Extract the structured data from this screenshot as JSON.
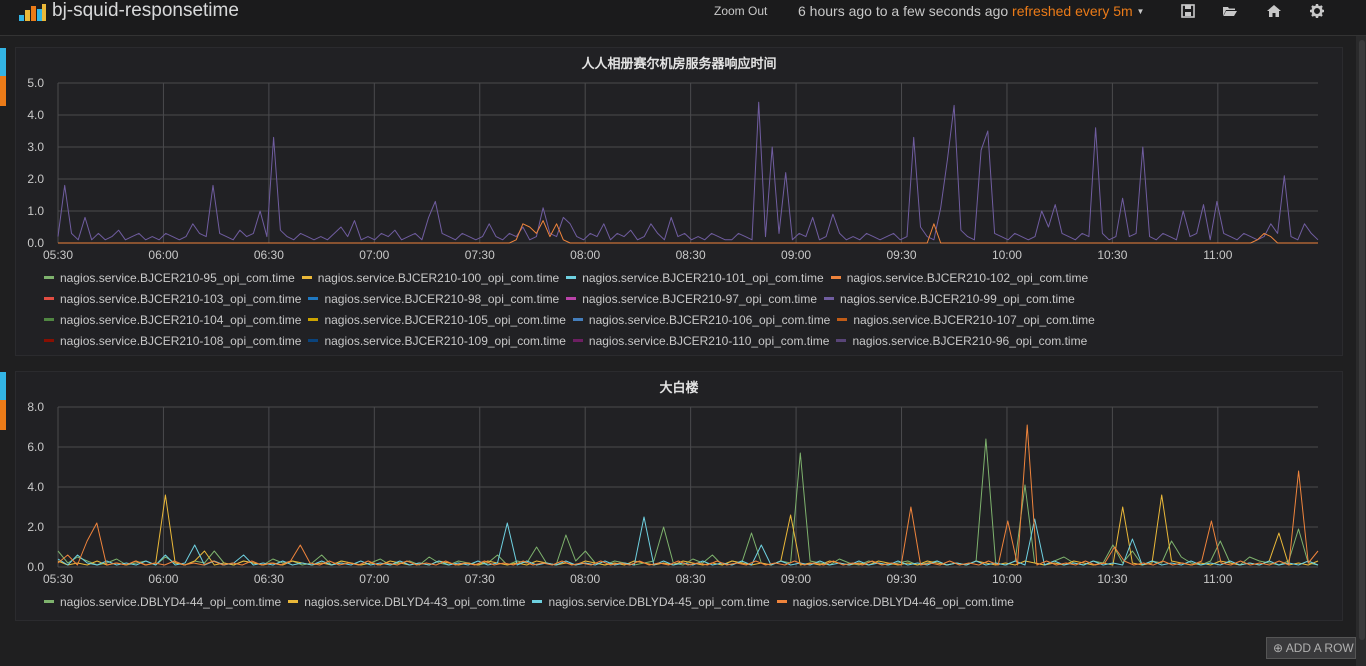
{
  "dashboard": {
    "title": "bj-squid-responsetime",
    "zoom_out_label": "Zoom Out",
    "time_range": "6 hours ago to a few seconds ago",
    "refresh_label": "refreshed every 5m",
    "icons": [
      "logo-icon",
      "save-icon",
      "folder-open-icon",
      "home-icon",
      "gear-icon"
    ]
  },
  "colors": {
    "row_bar_top": "#33b5e5",
    "row_bar_bottom": "#eb7b18",
    "grid": "#4a4a4d",
    "axis_text": "#c8c8c8"
  },
  "add_row_label": "ADD A ROW",
  "panels": [
    {
      "title": "人人相册赛尔机房服务器响应时间",
      "legend": [
        {
          "label": "nagios.service.BJCER210-95_opi_com.time",
          "color": "#7eb26d"
        },
        {
          "label": "nagios.service.BJCER210-100_opi_com.time",
          "color": "#eab839"
        },
        {
          "label": "nagios.service.BJCER210-101_opi_com.time",
          "color": "#6ed0e0"
        },
        {
          "label": "nagios.service.BJCER210-102_opi_com.time",
          "color": "#ef843c"
        },
        {
          "label": "nagios.service.BJCER210-103_opi_com.time",
          "color": "#e24d42"
        },
        {
          "label": "nagios.service.BJCER210-98_opi_com.time",
          "color": "#1f78c1"
        },
        {
          "label": "nagios.service.BJCER210-97_opi_com.time",
          "color": "#ba43a9"
        },
        {
          "label": "nagios.service.BJCER210-99_opi_com.time",
          "color": "#705da0"
        },
        {
          "label": "nagios.service.BJCER210-104_opi_com.time",
          "color": "#508642"
        },
        {
          "label": "nagios.service.BJCER210-105_opi_com.time",
          "color": "#cca300"
        },
        {
          "label": "nagios.service.BJCER210-106_opi_com.time",
          "color": "#447ebc"
        },
        {
          "label": "nagios.service.BJCER210-107_opi_com.time",
          "color": "#c15c17"
        },
        {
          "label": "nagios.service.BJCER210-108_opi_com.time",
          "color": "#890f02"
        },
        {
          "label": "nagios.service.BJCER210-109_opi_com.time",
          "color": "#0a437c"
        },
        {
          "label": "nagios.service.BJCER210-110_opi_com.time",
          "color": "#6d1f62"
        },
        {
          "label": "nagios.service.BJCER210-96_opi_com.time",
          "color": "#584477"
        }
      ]
    },
    {
      "title": "大白楼",
      "legend": [
        {
          "label": "nagios.service.DBLYD4-44_opi_com.time",
          "color": "#7eb26d"
        },
        {
          "label": "nagios.service.DBLYD4-43_opi_com.time",
          "color": "#eab839"
        },
        {
          "label": "nagios.service.DBLYD4-45_opi_com.time",
          "color": "#6ed0e0"
        },
        {
          "label": "nagios.service.DBLYD4-46_opi_com.time",
          "color": "#ef843c"
        }
      ]
    }
  ],
  "chart_data": [
    {
      "type": "line",
      "title": "人人相册赛尔机房服务器响应时间",
      "x_tick_labels": [
        "05:30",
        "06:00",
        "06:30",
        "07:00",
        "07:30",
        "08:00",
        "08:30",
        "09:00",
        "09:30",
        "10:00",
        "10:30",
        "11:00"
      ],
      "y_tick_labels": [
        "0.0",
        "1.0",
        "2.0",
        "3.0",
        "4.0",
        "5.0"
      ],
      "ylim": [
        0,
        5
      ],
      "grid": true,
      "legend_position": "bottom",
      "series": [
        {
          "name": "nagios.service.BJCER210-99_opi_com.time",
          "color": "#705da0",
          "values": [
            0.2,
            1.8,
            0.3,
            0.1,
            0.8,
            0.1,
            0.3,
            0.1,
            0.2,
            0.4,
            0.1,
            0.2,
            0.3,
            0.1,
            0.2,
            0.1,
            0.3,
            0.2,
            0.1,
            0.2,
            0.6,
            0.3,
            0.2,
            1.8,
            0.3,
            0.2,
            0.1,
            0.4,
            0.2,
            0.3,
            1.0,
            0.2,
            3.3,
            0.4,
            0.2,
            0.1,
            0.3,
            0.2,
            0.1,
            0.2,
            0.1,
            0.3,
            0.5,
            0.2,
            0.7,
            0.1,
            0.2,
            0.1,
            0.3,
            0.2,
            0.4,
            0.1,
            0.2,
            0.3,
            0.1,
            0.8,
            1.3,
            0.3,
            0.2,
            0.1,
            0.3,
            0.2,
            0.1,
            0.2,
            0.6,
            0.2,
            0.1,
            0.3,
            0.2,
            0.5,
            0.1,
            0.2,
            1.1,
            0.3,
            0.2,
            0.8,
            0.6,
            0.2,
            0.1,
            0.3,
            0.2,
            0.6,
            0.1,
            0.3,
            0.2,
            0.4,
            0.1,
            0.2,
            0.6,
            0.3,
            0.1,
            0.8,
            0.2,
            0.3,
            0.1,
            0.2,
            0.1,
            0.3,
            0.2,
            0.1,
            0.1,
            0.3,
            0.2,
            0.1,
            4.4,
            0.2,
            3.0,
            0.3,
            2.2,
            0.1,
            0.3,
            0.2,
            0.8,
            0.1,
            0.2,
            0.9,
            0.3,
            0.1,
            0.2,
            0.1,
            0.3,
            0.2,
            0.1,
            0.2,
            0.3,
            0.1,
            0.2,
            3.3,
            0.5,
            0.2,
            0.1,
            1.1,
            2.6,
            4.3,
            0.4,
            0.2,
            0.1,
            2.9,
            3.5,
            0.3,
            0.2,
            0.1,
            0.3,
            0.2,
            0.1,
            0.2,
            1.0,
            0.5,
            1.2,
            0.3,
            0.2,
            0.1,
            0.3,
            0.2,
            3.6,
            0.3,
            0.1,
            0.2,
            1.4,
            0.2,
            0.3,
            3.0,
            0.2,
            0.1,
            0.3,
            0.2,
            0.1,
            1.0,
            0.2,
            0.3,
            1.2,
            0.1,
            1.3,
            0.3,
            0.2,
            0.1,
            0.3,
            0.2,
            0.1,
            0.2,
            0.6,
            0.3,
            2.1,
            0.2,
            0.1,
            0.6,
            0.3,
            0.1
          ]
        },
        {
          "name": "nagios.service.BJCER210-102_opi_com.time",
          "color": "#ef843c",
          "values": [
            0,
            0,
            0,
            0,
            0,
            0,
            0,
            0,
            0,
            0,
            0,
            0,
            0,
            0,
            0,
            0,
            0,
            0,
            0,
            0,
            0,
            0,
            0,
            0,
            0,
            0,
            0,
            0,
            0,
            0,
            0,
            0,
            0,
            0,
            0,
            0,
            0,
            0,
            0,
            0,
            0,
            0,
            0,
            0,
            0,
            0,
            0,
            0,
            0,
            0,
            0,
            0,
            0,
            0,
            0,
            0,
            0,
            0,
            0,
            0,
            0,
            0,
            0,
            0,
            0,
            0,
            0,
            0,
            0.1,
            0.6,
            0.5,
            0.3,
            0.7,
            0.2,
            0.6,
            0.1,
            0,
            0,
            0,
            0,
            0,
            0,
            0,
            0,
            0,
            0,
            0,
            0,
            0,
            0,
            0,
            0,
            0,
            0,
            0,
            0,
            0,
            0,
            0,
            0,
            0,
            0,
            0,
            0,
            0,
            0,
            0,
            0,
            0,
            0,
            0,
            0,
            0,
            0,
            0,
            0,
            0,
            0,
            0,
            0,
            0,
            0,
            0,
            0,
            0,
            0,
            0,
            0,
            0,
            0,
            0.6,
            0,
            0,
            0,
            0,
            0,
            0,
            0,
            0,
            0,
            0,
            0,
            0,
            0,
            0,
            0,
            0,
            0,
            0,
            0,
            0,
            0,
            0,
            0,
            0,
            0,
            0,
            0,
            0,
            0,
            0,
            0,
            0,
            0,
            0,
            0,
            0,
            0,
            0,
            0,
            0,
            0,
            0,
            0,
            0,
            0,
            0,
            0,
            0.1,
            0.3,
            0.2,
            0,
            0,
            0,
            0,
            0,
            0,
            0
          ]
        }
      ]
    },
    {
      "type": "line",
      "title": "大白楼",
      "x_tick_labels": [
        "05:30",
        "06:00",
        "06:30",
        "07:00",
        "07:30",
        "08:00",
        "08:30",
        "09:00",
        "09:30",
        "10:00",
        "10:30",
        "11:00"
      ],
      "y_tick_labels": [
        "0.0",
        "2.0",
        "4.0",
        "6.0",
        "8.0"
      ],
      "ylim": [
        0,
        8
      ],
      "grid": true,
      "legend_position": "bottom",
      "series": [
        {
          "name": "nagios.service.DBLYD4-44_opi_com.time",
          "color": "#7eb26d",
          "values": [
            0.8,
            0.2,
            0.5,
            0.3,
            0.1,
            0.2,
            0.4,
            0.1,
            0.2,
            0.3,
            0.1,
            0.5,
            0.2,
            0.1,
            0.3,
            0.2,
            0.8,
            0.2,
            0.1,
            0.3,
            0.2,
            0.1,
            0.4,
            0.2,
            0.3,
            0.1,
            0.2,
            0.6,
            0.1,
            0.3,
            0.2,
            0.1,
            0.2,
            0.4,
            0.1,
            0.2,
            0.3,
            0.1,
            0.5,
            0.2,
            0.1,
            0.3,
            0.2,
            0.1,
            0.2,
            0.6,
            0.1,
            0.3,
            0.2,
            1.0,
            0.2,
            0.1,
            1.6,
            0.3,
            0.8,
            0.2,
            0.1,
            0.3,
            0.2,
            0.1,
            0.2,
            0.3,
            2.0,
            0.2,
            0.1,
            0.4,
            0.2,
            0.6,
            0.1,
            0.3,
            0.2,
            1.7,
            0.2,
            0.1,
            0.3,
            0.2,
            5.7,
            0.3,
            0.2,
            0.1,
            0.4,
            0.2,
            0.1,
            0.3,
            0.2,
            0.1,
            0.2,
            0.3,
            0.1,
            0.2,
            0.3,
            0.1,
            0.2,
            0.1,
            0.3,
            6.4,
            0.2,
            0.1,
            0.3,
            4.1,
            0.2,
            0.1,
            0.3,
            0.5,
            0.2,
            0.1,
            0.3,
            0.2,
            1.1,
            0.2,
            0.8,
            0.1,
            0.3,
            0.2,
            1.3,
            0.5,
            0.2,
            0.1,
            0.3,
            1.3,
            0.2,
            0.1,
            0.5,
            0.3,
            0.2,
            0.1,
            0.3,
            1.9,
            0.2,
            0.1
          ]
        },
        {
          "name": "nagios.service.DBLYD4-43_opi_com.time",
          "color": "#eab839",
          "values": [
            0.3,
            0.1,
            0.2,
            0.1,
            0.3,
            0.1,
            0.2,
            0.1,
            0.3,
            0.1,
            0.2,
            3.6,
            0.2,
            0.1,
            0.3,
            0.8,
            0.1,
            0.2,
            0.1,
            0.3,
            0.2,
            0.1,
            0.2,
            0.1,
            0.3,
            0.2,
            0.1,
            0.2,
            0.1,
            0.3,
            0.2,
            0.1,
            0.2,
            0.1,
            0.3,
            0.2,
            0.1,
            0.2,
            0.1,
            0.3,
            0.2,
            0.1,
            0.2,
            0.1,
            0.3,
            0.2,
            0.1,
            0.2,
            0.1,
            0.3,
            0.2,
            0.1,
            0.2,
            0.1,
            0.3,
            0.2,
            0.1,
            0.2,
            0.1,
            0.3,
            0.2,
            0.1,
            0.2,
            0.1,
            0.3,
            0.2,
            0.1,
            0.2,
            0.1,
            0.3,
            0.2,
            0.1,
            0.2,
            0.1,
            0.3,
            2.6,
            0.1,
            0.2,
            0.1,
            0.3,
            0.2,
            0.1,
            0.2,
            0.1,
            0.3,
            0.2,
            0.1,
            0.2,
            0.1,
            0.3,
            0.2,
            0.1,
            0.2,
            0.1,
            0.3,
            0.2,
            0.1,
            0.2,
            0.1,
            0.3,
            0.2,
            0.1,
            0.2,
            0.1,
            0.3,
            0.2,
            0.1,
            0.2,
            0.1,
            3.0,
            0.2,
            0.1,
            0.2,
            3.6,
            0.3,
            0.2,
            0.1,
            0.2,
            0.1,
            0.3,
            0.2,
            0.1,
            0.2,
            0.1,
            0.3,
            1.7,
            0.1,
            0.2,
            0.1,
            0.3
          ]
        },
        {
          "name": "nagios.service.DBLYD4-45_opi_com.time",
          "color": "#6ed0e0",
          "values": [
            0.4,
            0.1,
            0.6,
            0.2,
            0.1,
            0.3,
            0.1,
            0.2,
            0.1,
            0.3,
            0.1,
            0.6,
            0.1,
            0.2,
            1.1,
            0.1,
            0.3,
            0.1,
            0.2,
            0.6,
            0.1,
            0.2,
            0.1,
            0.3,
            0.1,
            0.2,
            0.1,
            0.3,
            0.1,
            0.2,
            0.1,
            0.3,
            0.1,
            0.2,
            0.1,
            0.3,
            0.1,
            0.2,
            0.1,
            0.3,
            0.1,
            0.2,
            0.1,
            0.3,
            0.1,
            0.2,
            2.2,
            0.1,
            0.3,
            0.1,
            0.2,
            0.1,
            0.3,
            0.1,
            0.2,
            0.1,
            0.3,
            0.1,
            0.2,
            0.1,
            2.5,
            0.1,
            0.3,
            0.1,
            0.2,
            0.1,
            0.3,
            0.1,
            0.2,
            0.1,
            0.3,
            0.1,
            1.1,
            0.1,
            0.3,
            0.1,
            0.2,
            0.1,
            0.3,
            0.1,
            0.2,
            0.1,
            0.3,
            0.1,
            0.2,
            0.1,
            0.3,
            0.1,
            0.2,
            0.1,
            0.3,
            0.1,
            0.2,
            0.1,
            0.3,
            0.1,
            0.2,
            0.1,
            0.3,
            0.1,
            2.4,
            0.1,
            0.3,
            0.1,
            0.2,
            0.1,
            0.3,
            0.1,
            0.2,
            0.1,
            1.4,
            0.1,
            0.3,
            0.1,
            0.2,
            0.1,
            0.3,
            0.1,
            0.2,
            0.1,
            0.3,
            0.1,
            0.2,
            0.1,
            0.3,
            0.1,
            0.2,
            0.1,
            0.3,
            0.1
          ]
        },
        {
          "name": "nagios.service.DBLYD4-46_opi_com.time",
          "color": "#ef843c",
          "values": [
            0.2,
            0.6,
            0.1,
            1.3,
            2.2,
            0.1,
            0.2,
            0.1,
            0.3,
            0.1,
            0.2,
            0.1,
            0.3,
            0.1,
            0.2,
            0.1,
            0.3,
            0.1,
            0.2,
            0.1,
            0.3,
            0.1,
            0.2,
            0.1,
            0.3,
            1.1,
            0.2,
            0.1,
            0.3,
            0.1,
            0.2,
            0.1,
            0.3,
            0.1,
            0.2,
            0.1,
            0.3,
            0.1,
            0.2,
            0.1,
            0.3,
            0.1,
            0.2,
            0.1,
            0.3,
            0.1,
            0.2,
            0.1,
            0.3,
            0.1,
            0.2,
            0.1,
            0.3,
            0.1,
            0.2,
            0.1,
            0.3,
            0.1,
            0.2,
            0.1,
            0.3,
            0.1,
            0.2,
            0.1,
            0.3,
            0.1,
            0.2,
            0.1,
            0.3,
            0.1,
            0.2,
            0.1,
            0.3,
            0.1,
            0.2,
            0.1,
            0.3,
            0.1,
            0.2,
            0.1,
            0.3,
            0.1,
            0.2,
            0.1,
            0.3,
            0.1,
            0.2,
            0.1,
            3.0,
            0.1,
            0.2,
            0.1,
            0.3,
            0.1,
            0.2,
            0.1,
            0.3,
            0.1,
            2.3,
            0.1,
            7.1,
            0.1,
            0.3,
            0.1,
            0.2,
            0.1,
            0.3,
            0.1,
            0.2,
            1.0,
            0.3,
            0.1,
            0.2,
            0.1,
            0.3,
            0.1,
            0.2,
            0.1,
            0.3,
            2.3,
            0.2,
            0.1,
            0.3,
            0.1,
            0.2,
            0.1,
            0.3,
            0.1,
            4.8,
            0.2,
            0.8
          ]
        }
      ]
    }
  ]
}
